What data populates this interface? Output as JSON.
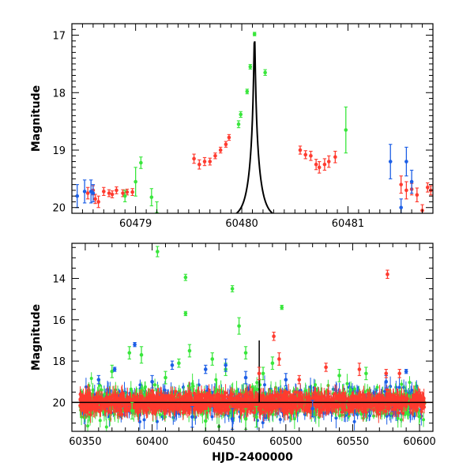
{
  "colors": {
    "red": "#ff3b2f",
    "green": "#39e63c",
    "blue": "#1d5fe6",
    "model": "#000000"
  },
  "chart_data": [
    {
      "type": "scatter",
      "panel": "top",
      "title": "",
      "xlabel": "",
      "ylabel": "Magnitude",
      "xlim": [
        60478.4,
        60481.8
      ],
      "ylim": [
        20.1,
        16.8
      ],
      "y_inverted": true,
      "x_ticks": [
        60479,
        60480,
        60481
      ],
      "x_tick_labels": [
        "60479",
        "60480",
        "60481"
      ],
      "y_ticks": [
        17,
        18,
        19,
        20
      ],
      "y_tick_labels": [
        "17",
        "18",
        "19",
        "20"
      ],
      "grid": false,
      "legend": "none",
      "model_curve": {
        "name": "",
        "t0": 60480.12,
        "peak_mag": 16.98,
        "baseline_mag": 20.2,
        "tE": 0.1
      },
      "series": [
        {
          "color_key": "red",
          "points": [
            [
              60478.55,
              19.75,
              0.1
            ],
            [
              60478.6,
              19.7,
              0.08
            ],
            [
              60478.62,
              19.85,
              0.08
            ],
            [
              60478.65,
              19.9,
              0.1
            ],
            [
              60478.7,
              19.72,
              0.07
            ],
            [
              60478.75,
              19.75,
              0.06
            ],
            [
              60478.78,
              19.77,
              0.06
            ],
            [
              60478.82,
              19.7,
              0.06
            ],
            [
              60478.88,
              19.75,
              0.06
            ],
            [
              60478.92,
              19.73,
              0.05
            ],
            [
              60478.97,
              19.73,
              0.06
            ],
            [
              60479.55,
              19.15,
              0.08
            ],
            [
              60479.6,
              19.25,
              0.08
            ],
            [
              60479.65,
              19.2,
              0.07
            ],
            [
              60479.7,
              19.2,
              0.06
            ],
            [
              60479.75,
              19.1,
              0.05
            ],
            [
              60479.8,
              19.0,
              0.05
            ],
            [
              60479.85,
              18.9,
              0.05
            ],
            [
              60479.88,
              18.78,
              0.05
            ],
            [
              60480.55,
              19.0,
              0.07
            ],
            [
              60480.6,
              19.08,
              0.07
            ],
            [
              60480.65,
              19.1,
              0.08
            ],
            [
              60480.7,
              19.25,
              0.09
            ],
            [
              60480.73,
              19.3,
              0.1
            ],
            [
              60480.78,
              19.25,
              0.1
            ],
            [
              60480.82,
              19.2,
              0.1
            ],
            [
              60480.88,
              19.12,
              0.1
            ],
            [
              60481.5,
              19.6,
              0.15
            ],
            [
              60481.55,
              19.7,
              0.15
            ],
            [
              60481.6,
              19.68,
              0.1
            ],
            [
              60481.65,
              19.78,
              0.12
            ],
            [
              60481.7,
              20.05,
              0.1
            ],
            [
              60481.75,
              19.65,
              0.08
            ],
            [
              60481.78,
              19.7,
              0.08
            ]
          ]
        },
        {
          "color_key": "green",
          "points": [
            [
              60478.9,
              19.8,
              0.1
            ],
            [
              60479.0,
              19.55,
              0.25
            ],
            [
              60479.05,
              19.22,
              0.1
            ],
            [
              60479.15,
              19.82,
              0.15
            ],
            [
              60479.2,
              20.1,
              0.2
            ],
            [
              60479.97,
              18.55,
              0.06
            ],
            [
              60479.99,
              18.38,
              0.05
            ],
            [
              60480.05,
              17.98,
              0.04
            ],
            [
              60480.08,
              17.55,
              0.04
            ],
            [
              60480.12,
              16.98,
              0.03
            ],
            [
              60480.22,
              17.65,
              0.05
            ],
            [
              60480.98,
              18.65,
              0.4
            ]
          ]
        },
        {
          "color_key": "blue",
          "points": [
            [
              60478.45,
              19.8,
              0.2
            ],
            [
              60478.52,
              19.72,
              0.2
            ],
            [
              60478.58,
              19.72,
              0.2
            ],
            [
              60478.6,
              19.75,
              0.15
            ],
            [
              60481.4,
              19.2,
              0.3
            ],
            [
              60481.5,
              20.0,
              0.15
            ],
            [
              60481.55,
              19.2,
              0.25
            ],
            [
              60481.6,
              19.55,
              0.2
            ]
          ]
        }
      ]
    },
    {
      "type": "scatter",
      "panel": "bottom",
      "title": "",
      "xlabel": "HJD-2400000",
      "ylabel": "Magnitude",
      "xlim": [
        60340,
        60610
      ],
      "ylim": [
        21.4,
        12.3
      ],
      "y_inverted": true,
      "x_ticks": [
        60350,
        60400,
        60450,
        60500,
        60550,
        60600
      ],
      "x_tick_labels": [
        "60350",
        "60400",
        "60450",
        "60500",
        "60550",
        "60600"
      ],
      "y_ticks": [
        14,
        16,
        18,
        20
      ],
      "y_tick_labels": [
        "14",
        "16",
        "18",
        "20"
      ],
      "grid": false,
      "legend": "none",
      "baseline_mag": 20.0,
      "series": [
        {
          "color_key": "green",
          "points": [
            [
              60404,
              12.7,
              0.25
            ],
            [
              60425,
              13.95,
              0.15
            ],
            [
              60425,
              15.7,
              0.1
            ],
            [
              60460,
              14.5,
              0.15
            ],
            [
              60465,
              16.3,
              0.4
            ],
            [
              60497,
              15.4,
              0.1
            ],
            [
              60383,
              17.6,
              0.3
            ],
            [
              60392,
              17.7,
              0.4
            ],
            [
              60420,
              18.1,
              0.2
            ],
            [
              60428,
              17.5,
              0.3
            ],
            [
              60445,
              17.9,
              0.3
            ],
            [
              60470,
              17.6,
              0.3
            ],
            [
              60490,
              18.1,
              0.3
            ],
            [
              60370,
              18.5,
              0.3
            ],
            [
              60410,
              18.8,
              0.3
            ],
            [
              60455,
              18.4,
              0.3
            ],
            [
              60483,
              18.6,
              0.3
            ],
            [
              60385,
              20.4,
              0.4
            ],
            [
              60470,
              20.8,
              0.5
            ],
            [
              60440,
              20.9,
              0.5
            ],
            [
              60478,
              20.7,
              0.5
            ],
            [
              60540,
              18.7,
              0.3
            ],
            [
              60560,
              18.6,
              0.3
            ]
          ]
        },
        {
          "color_key": "blue",
          "points": [
            [
              60387,
              17.2,
              0.1
            ],
            [
              60372,
              18.4,
              0.1
            ],
            [
              60360,
              18.9,
              0.2
            ],
            [
              60415,
              18.2,
              0.2
            ],
            [
              60440,
              18.4,
              0.2
            ],
            [
              60455,
              18.2,
              0.3
            ],
            [
              60470,
              18.8,
              0.3
            ],
            [
              60500,
              18.9,
              0.3
            ],
            [
              60590,
              18.5,
              0.1
            ],
            [
              60400,
              19.0,
              0.3
            ],
            [
              60430,
              20.7,
              0.5
            ],
            [
              60460,
              20.8,
              0.5
            ],
            [
              60520,
              20.3,
              0.4
            ],
            [
              60575,
              19.0,
              0.3
            ]
          ]
        },
        {
          "color_key": "red",
          "points": [
            [
              60576,
              13.8,
              0.2
            ],
            [
              60491,
              16.8,
              0.2
            ],
            [
              60495,
              17.9,
              0.3
            ],
            [
              60530,
              18.3,
              0.2
            ],
            [
              60555,
              18.4,
              0.3
            ],
            [
              60575,
              18.6,
              0.2
            ],
            [
              60585,
              18.6,
              0.2
            ],
            [
              60480,
              18.6,
              0.3
            ],
            [
              60510,
              18.9,
              0.2
            ]
          ]
        }
      ]
    }
  ]
}
